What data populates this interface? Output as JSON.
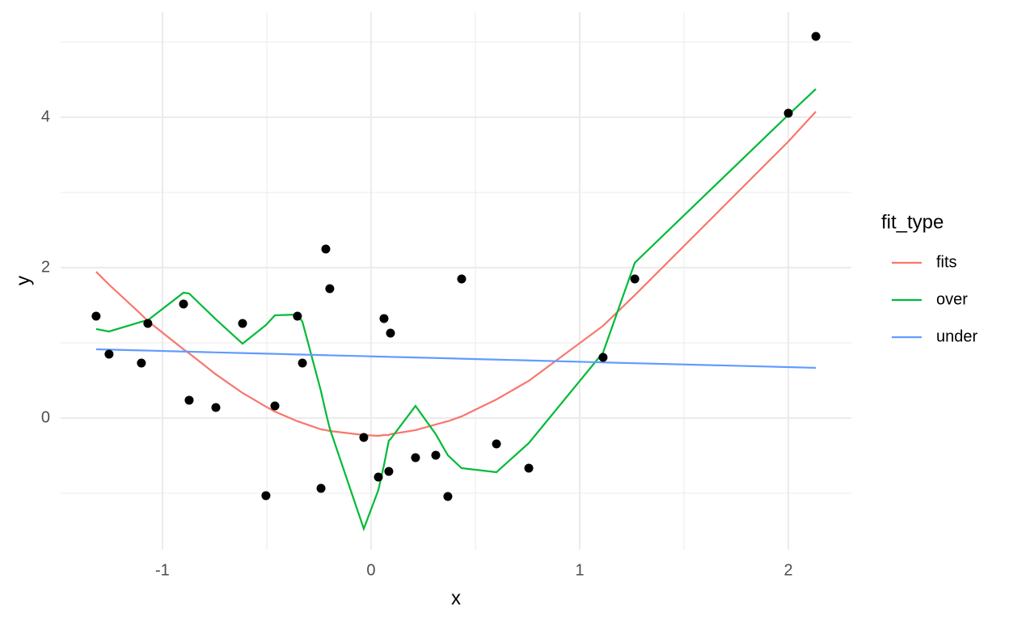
{
  "chart_data": {
    "type": "scatter",
    "x_label": "x",
    "y_label": "y",
    "legend_title": "fit_type",
    "x": [
      -1.318,
      -1.256,
      -1.101,
      -1.07,
      -0.899,
      -0.872,
      -0.744,
      -0.616,
      -0.504,
      -0.461,
      -0.353,
      -0.329,
      -0.24,
      -0.217,
      -0.198,
      -0.035,
      0.035,
      0.062,
      0.085,
      0.093,
      0.213,
      0.31,
      0.368,
      0.434,
      0.601,
      0.756,
      1.112,
      1.264,
      2.0,
      2.132
    ],
    "values": [
      1.355,
      0.849,
      0.731,
      1.258,
      1.516,
      0.237,
      0.14,
      1.258,
      -1.032,
      0.161,
      1.355,
      0.731,
      -0.935,
      2.247,
      1.72,
      -0.258,
      -0.785,
      1.323,
      -0.71,
      1.129,
      -0.527,
      -0.495,
      -1.043,
      1.849,
      -0.344,
      -0.667,
      0.806,
      1.849,
      4.054,
      5.075
    ],
    "color": "#000000",
    "series": [
      {
        "name": "fits",
        "color": "#F8766D",
        "values": [
          1.946,
          1.774,
          1.376,
          1.29,
          0.914,
          0.86,
          0.581,
          0.333,
          0.151,
          0.086,
          -0.043,
          -0.065,
          -0.151,
          -0.161,
          -0.172,
          -0.226,
          -0.237,
          -0.226,
          -0.226,
          -0.215,
          -0.161,
          -0.086,
          -0.043,
          0.022,
          0.247,
          0.495,
          1.226,
          1.634,
          3.677,
          4.075
        ]
      },
      {
        "name": "over",
        "color": "#00BA38",
        "values": [
          1.183,
          1.151,
          1.28,
          1.301,
          1.667,
          1.656,
          1.312,
          0.989,
          1.237,
          1.366,
          1.376,
          1.28,
          0.355,
          0.075,
          -0.14,
          -1.473,
          -0.957,
          -0.624,
          -0.301,
          -0.28,
          0.161,
          -0.215,
          -0.495,
          -0.667,
          -0.72,
          -0.333,
          0.871,
          2.065,
          4.032,
          4.376
        ]
      },
      {
        "name": "under",
        "color": "#619CFF",
        "values": [
          0.914,
          0.91,
          0.899,
          0.897,
          0.884,
          0.882,
          0.873,
          0.864,
          0.856,
          0.853,
          0.845,
          0.844,
          0.837,
          0.836,
          0.834,
          0.823,
          0.817,
          0.816,
          0.814,
          0.813,
          0.805,
          0.798,
          0.794,
          0.789,
          0.777,
          0.766,
          0.74,
          0.729,
          0.677,
          0.667
        ]
      }
    ],
    "xlim": [
      -1.488,
      2.302
    ],
    "ylim": [
      -1.753,
      5.398
    ],
    "xticks": [
      -1,
      0,
      1,
      2
    ],
    "yticks": [
      0,
      2,
      4
    ],
    "xminorticks": [
      -0.5,
      0.5,
      1.5
    ],
    "yminorticks": [
      -1,
      1,
      3,
      5
    ],
    "grid": true
  }
}
